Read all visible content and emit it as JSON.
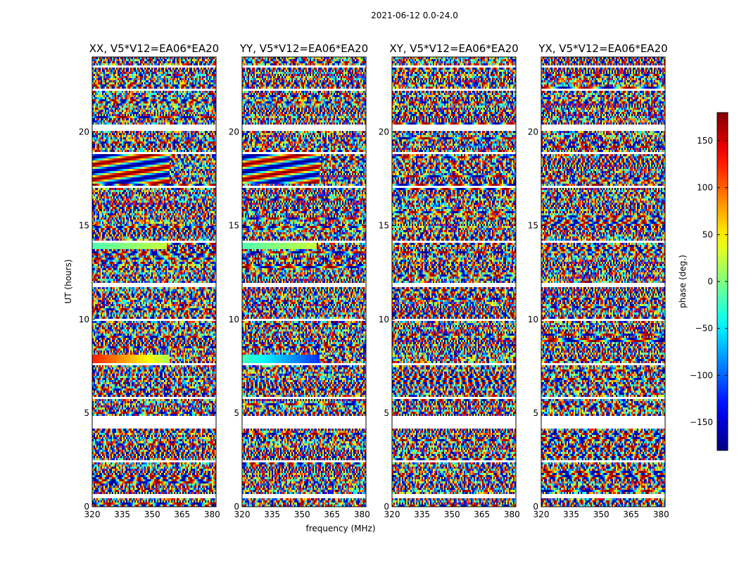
{
  "figure": {
    "suptitle": "2021-06-12 0.0-24.0",
    "xlabel": "frequency (MHz)",
    "ylabel": "UT (hours)",
    "colorbar_label": "phase (deg.)"
  },
  "chart_data": [
    {
      "type": "heatmap",
      "title": "XX, V5*V12=EA06*EA20",
      "x_range_mhz": [
        320,
        382
      ],
      "y_range_hours": [
        0,
        24
      ],
      "x_ticks": [
        320,
        335,
        350,
        365,
        380
      ],
      "y_ticks": [
        0,
        5,
        10,
        15,
        20
      ],
      "value": "phase (deg.)",
      "value_range": [
        -180,
        180
      ]
    },
    {
      "type": "heatmap",
      "title": "YY, V5*V12=EA06*EA20",
      "x_range_mhz": [
        320,
        382
      ],
      "y_range_hours": [
        0,
        24
      ],
      "x_ticks": [
        320,
        335,
        350,
        365,
        380
      ],
      "y_ticks": [
        0,
        5,
        10,
        15,
        20
      ],
      "value": "phase (deg.)",
      "value_range": [
        -180,
        180
      ]
    },
    {
      "type": "heatmap",
      "title": "XY, V5*V12=EA06*EA20",
      "x_range_mhz": [
        320,
        382
      ],
      "y_range_hours": [
        0,
        24
      ],
      "x_ticks": [
        320,
        335,
        350,
        365,
        380
      ],
      "y_ticks": [
        0,
        5,
        10,
        15,
        20
      ],
      "value": "phase (deg.)",
      "value_range": [
        -180,
        180
      ]
    },
    {
      "type": "heatmap",
      "title": "YX, V5*V12=EA06*EA20",
      "x_range_mhz": [
        320,
        382
      ],
      "y_range_hours": [
        0,
        24
      ],
      "x_ticks": [
        320,
        335,
        350,
        365,
        380
      ],
      "y_ticks": [
        0,
        5,
        10,
        15,
        20
      ],
      "value": "phase (deg.)",
      "value_range": [
        -180,
        180
      ]
    }
  ],
  "colorbar": {
    "colormap": "jet",
    "range": [
      -180,
      180
    ],
    "ticks": [
      -150,
      -100,
      -50,
      0,
      50,
      100,
      150
    ],
    "tick_labels": [
      "−150",
      "−100",
      "−50",
      "0",
      "50",
      "100",
      "150"
    ]
  },
  "data_gaps_hours": [
    [
      0.5,
      0.62
    ],
    [
      2.35,
      2.45
    ],
    [
      4.2,
      4.85
    ],
    [
      5.7,
      5.85
    ],
    [
      7.6,
      7.7
    ],
    [
      9.9,
      10.05
    ],
    [
      11.75,
      11.9
    ],
    [
      14.1,
      14.2
    ],
    [
      17.0,
      17.1
    ],
    [
      18.8,
      18.95
    ],
    [
      20.1,
      20.35
    ],
    [
      22.2,
      22.3
    ],
    [
      23.4,
      23.5
    ]
  ]
}
